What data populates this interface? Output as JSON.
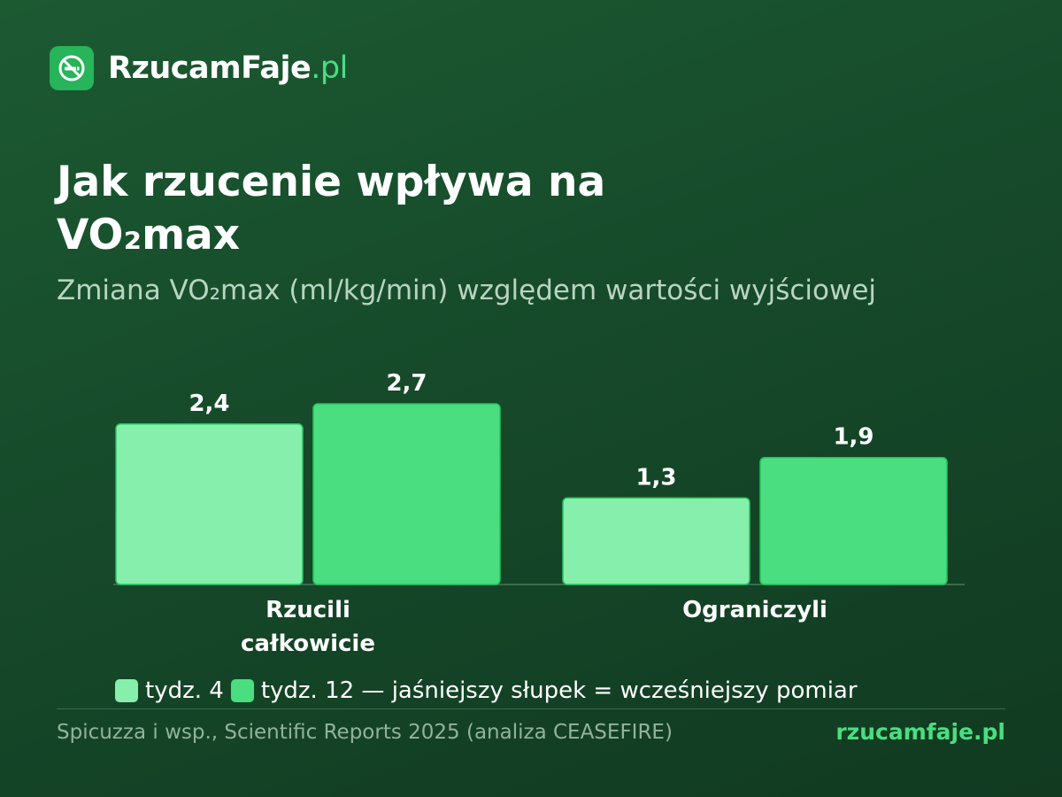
{
  "brand": {
    "name": "RzucamFaje",
    "tld": ".pl",
    "icon": "no-smoking-icon",
    "icon_color": "#27b45a",
    "accent": "#4ade80"
  },
  "title": "Jak rzucenie wpływa na\nVO₂max",
  "subtitle": "Zmiana VO₂max (ml/kg/min) względem wartości wyjściowej",
  "chart_data": {
    "type": "bar",
    "categories": [
      "Rzucili całkowicie",
      "Ograniczyli"
    ],
    "category_lines": [
      [
        "Rzucili",
        "całkowicie"
      ],
      [
        "Ograniczyli"
      ]
    ],
    "series": [
      {
        "name": "tydz. 4",
        "values": [
          2.4,
          1.3
        ],
        "labels": [
          "2,4",
          "1,3"
        ],
        "color": "#86efac"
      },
      {
        "name": "tydz. 12",
        "values": [
          2.7,
          1.9
        ],
        "labels": [
          "2,7",
          "1,9"
        ],
        "color": "#4ade80"
      }
    ],
    "ylim": [
      0,
      2.7
    ],
    "grid": false,
    "legend_placement": "bottom-left"
  },
  "legend": {
    "item1": "tydz. 4",
    "item2": "tydz. 12 — jaśniejszy słupek = wcześniejszy pomiar"
  },
  "footer": {
    "source": "Spicuzza i wsp., Scientific Reports 2025 (analiza CEASEFIRE)",
    "site": "rzucamfaje.pl"
  }
}
